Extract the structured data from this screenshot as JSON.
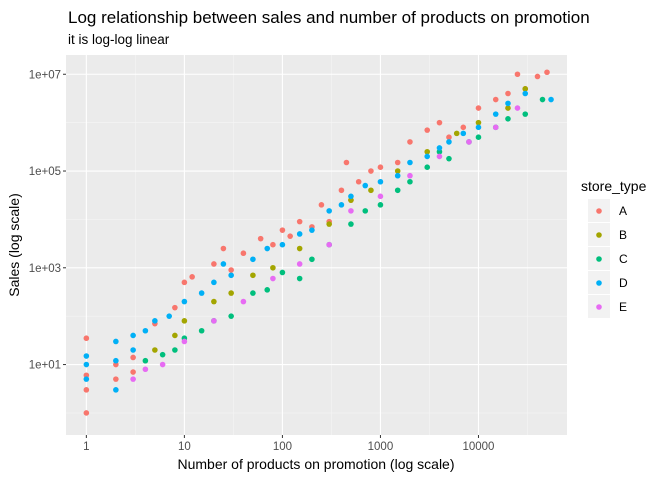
{
  "chart_data": {
    "type": "scatter",
    "title": "Log relationship between sales and number of products on promotion",
    "subtitle": "it is log-log linear",
    "xlabel": "Number of products on promotion (log scale)",
    "ylabel": "Sales (log scale)",
    "x_scale": "log10",
    "y_scale": "log10",
    "xlim": [
      0.62,
      80000
    ],
    "ylim": [
      0.35,
      25000000
    ],
    "x_ticks": [
      1,
      10,
      100,
      1000,
      10000
    ],
    "x_tick_labels": [
      "1",
      "10",
      "100",
      "1000",
      "10000"
    ],
    "y_ticks": [
      10,
      1000,
      100000,
      10000000
    ],
    "y_tick_labels": [
      "1e+01",
      "1e+03",
      "1e+05",
      "1e+07"
    ],
    "grid": true,
    "legend_placement": "right",
    "legend_title": "store_type",
    "series": [
      {
        "name": "A",
        "color": "#F8766D",
        "points": [
          [
            1,
            1
          ],
          [
            1,
            3
          ],
          [
            1,
            6
          ],
          [
            1,
            35
          ],
          [
            2,
            5
          ],
          [
            2,
            10
          ],
          [
            3,
            7
          ],
          [
            3,
            14
          ],
          [
            5,
            70
          ],
          [
            8,
            150
          ],
          [
            10,
            500
          ],
          [
            12,
            650
          ],
          [
            20,
            1200
          ],
          [
            25,
            2500
          ],
          [
            30,
            900
          ],
          [
            40,
            2000
          ],
          [
            60,
            4000
          ],
          [
            80,
            3000
          ],
          [
            100,
            6000
          ],
          [
            120,
            4500
          ],
          [
            150,
            9000
          ],
          [
            200,
            7000
          ],
          [
            250,
            20000
          ],
          [
            300,
            9000
          ],
          [
            400,
            40000
          ],
          [
            450,
            150000
          ],
          [
            500,
            25000
          ],
          [
            600,
            60000
          ],
          [
            800,
            100000
          ],
          [
            1000,
            120000
          ],
          [
            1500,
            150000
          ],
          [
            2000,
            400000
          ],
          [
            3000,
            700000
          ],
          [
            4000,
            1000000
          ],
          [
            5000,
            500000
          ],
          [
            7000,
            800000
          ],
          [
            10000,
            2000000
          ],
          [
            15000,
            3000000
          ],
          [
            20000,
            4000000
          ],
          [
            25000,
            10000000
          ],
          [
            30000,
            5000000
          ],
          [
            40000,
            9000000
          ],
          [
            50000,
            11000000
          ]
        ]
      },
      {
        "name": "B",
        "color": "#A3A500",
        "points": [
          [
            5,
            20
          ],
          [
            8,
            40
          ],
          [
            10,
            80
          ],
          [
            20,
            200
          ],
          [
            30,
            300
          ],
          [
            50,
            700
          ],
          [
            80,
            1000
          ],
          [
            150,
            2500
          ],
          [
            300,
            8000
          ],
          [
            500,
            25000
          ],
          [
            800,
            40000
          ],
          [
            1500,
            100000
          ],
          [
            3000,
            250000
          ],
          [
            6000,
            600000
          ],
          [
            10000,
            1000000
          ],
          [
            20000,
            2000000
          ],
          [
            30000,
            5000000
          ]
        ]
      },
      {
        "name": "C",
        "color": "#00BF7D",
        "points": [
          [
            4,
            12
          ],
          [
            6,
            16
          ],
          [
            8,
            20
          ],
          [
            10,
            35
          ],
          [
            15,
            50
          ],
          [
            20,
            80
          ],
          [
            30,
            100
          ],
          [
            50,
            300
          ],
          [
            70,
            350
          ],
          [
            100,
            800
          ],
          [
            150,
            600
          ],
          [
            200,
            1500
          ],
          [
            300,
            3000
          ],
          [
            500,
            8000
          ],
          [
            700,
            15000
          ],
          [
            1000,
            20000
          ],
          [
            1500,
            40000
          ],
          [
            2000,
            60000
          ],
          [
            3000,
            120000
          ],
          [
            4000,
            250000
          ],
          [
            5000,
            180000
          ],
          [
            8000,
            400000
          ],
          [
            10000,
            500000
          ],
          [
            15000,
            800000
          ],
          [
            20000,
            1200000
          ],
          [
            30000,
            1500000
          ],
          [
            45000,
            3000000
          ]
        ]
      },
      {
        "name": "D",
        "color": "#00B0F6",
        "points": [
          [
            1,
            5
          ],
          [
            1,
            10
          ],
          [
            1,
            15
          ],
          [
            2,
            3
          ],
          [
            2,
            12
          ],
          [
            2,
            30
          ],
          [
            3,
            20
          ],
          [
            3,
            40
          ],
          [
            4,
            50
          ],
          [
            5,
            80
          ],
          [
            7,
            100
          ],
          [
            10,
            200
          ],
          [
            15,
            300
          ],
          [
            20,
            500
          ],
          [
            25,
            1200
          ],
          [
            30,
            700
          ],
          [
            50,
            1500
          ],
          [
            70,
            2500
          ],
          [
            100,
            3000
          ],
          [
            150,
            5000
          ],
          [
            200,
            6000
          ],
          [
            300,
            15000
          ],
          [
            400,
            20000
          ],
          [
            500,
            30000
          ],
          [
            700,
            50000
          ],
          [
            1000,
            60000
          ],
          [
            1500,
            80000
          ],
          [
            2000,
            150000
          ],
          [
            3000,
            200000
          ],
          [
            4000,
            300000
          ],
          [
            5000,
            400000
          ],
          [
            7000,
            600000
          ],
          [
            10000,
            800000
          ],
          [
            15000,
            1500000
          ],
          [
            20000,
            2500000
          ],
          [
            30000,
            4000000
          ],
          [
            55000,
            3000000
          ]
        ]
      },
      {
        "name": "E",
        "color": "#E76BF3",
        "points": [
          [
            3,
            5
          ],
          [
            4,
            8
          ],
          [
            6,
            10
          ],
          [
            10,
            30
          ],
          [
            20,
            80
          ],
          [
            40,
            200
          ],
          [
            80,
            600
          ],
          [
            150,
            1200
          ],
          [
            300,
            3000
          ],
          [
            500,
            15000
          ],
          [
            1000,
            30000
          ],
          [
            2000,
            80000
          ],
          [
            4000,
            200000
          ],
          [
            8000,
            400000
          ],
          [
            15000,
            800000
          ],
          [
            25000,
            2000000
          ]
        ]
      }
    ]
  }
}
